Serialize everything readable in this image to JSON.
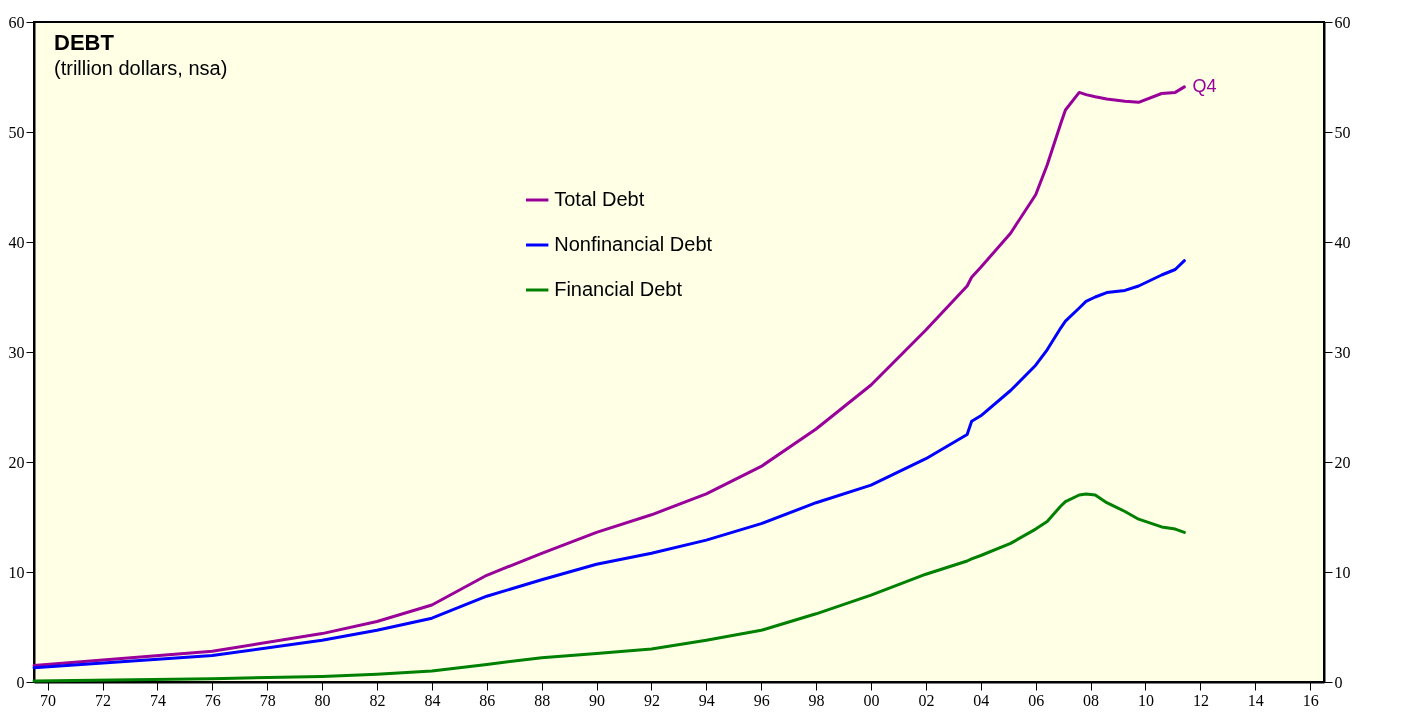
{
  "chart_data": {
    "type": "line",
    "title": "DEBT",
    "subtitle": "(trillion dollars, nsa)",
    "xlim": [
      "1970-01",
      "2017-01"
    ],
    "xticks": [
      {
        "value": "1970-07",
        "label": "70"
      },
      {
        "value": "1972-07",
        "label": "72"
      },
      {
        "value": "1974-07",
        "label": "74"
      },
      {
        "value": "1976-07",
        "label": "76"
      },
      {
        "value": "1978-07",
        "label": "78"
      },
      {
        "value": "1980-07",
        "label": "80"
      },
      {
        "value": "1982-07",
        "label": "82"
      },
      {
        "value": "1984-07",
        "label": "84"
      },
      {
        "value": "1986-07",
        "label": "86"
      },
      {
        "value": "1988-07",
        "label": "88"
      },
      {
        "value": "1990-07",
        "label": "90"
      },
      {
        "value": "1992-07",
        "label": "92"
      },
      {
        "value": "1994-07",
        "label": "94"
      },
      {
        "value": "1996-07",
        "label": "96"
      },
      {
        "value": "1998-07",
        "label": "98"
      },
      {
        "value": "2000-07",
        "label": "00"
      },
      {
        "value": "2002-07",
        "label": "02"
      },
      {
        "value": "2004-07",
        "label": "04"
      },
      {
        "value": "2006-07",
        "label": "06"
      },
      {
        "value": "2008-07",
        "label": "08"
      },
      {
        "value": "2010-07",
        "label": "10"
      },
      {
        "value": "2012-07",
        "label": "12"
      },
      {
        "value": "2014-07",
        "label": "14"
      },
      {
        "value": "2016-07",
        "label": "16"
      }
    ],
    "ylim": [
      0,
      60
    ],
    "yticks": [
      0,
      10,
      20,
      30,
      40,
      50,
      60
    ],
    "y2lim": [
      0,
      60
    ],
    "y2ticks": [
      0,
      10,
      20,
      30,
      40,
      50,
      60
    ],
    "grid": false,
    "legend": "top",
    "line_style": "solid",
    "marker": "none",
    "annotations": [
      {
        "text": "Q4",
        "x": "2011-12",
        "y": 54.1
      }
    ],
    "x": [
      "1970-01",
      "1976-07",
      "1980-07",
      "1982-07",
      "1984-07",
      "1986-07",
      "1988-07",
      "1990-07",
      "1992-07",
      "1994-07",
      "1996-07",
      "1998-07",
      "2000-07",
      "2002-07",
      "2004-01",
      "2004-03",
      "2004-07",
      "2005-08",
      "2006-07",
      "2006-12",
      "2007-06",
      "2007-08",
      "2008-02",
      "2008-05",
      "2008-09",
      "2009-02",
      "2009-10",
      "2010-04",
      "2011-02",
      "2011-08",
      "2011-12"
    ],
    "series": [
      {
        "name": "Total Debt",
        "color": "#990099",
        "values": [
          1.5,
          2.8,
          4.4,
          5.5,
          7.0,
          9.7,
          11.7,
          13.6,
          15.2,
          17.1,
          19.6,
          23.0,
          27.0,
          32.0,
          36.0,
          36.8,
          37.7,
          40.8,
          44.3,
          47.0,
          50.8,
          52.0,
          53.6,
          53.4,
          53.2,
          53.0,
          52.8,
          52.7,
          53.5,
          53.6,
          54.1
        ]
      },
      {
        "name": "Nonfinancial Debt",
        "color": "#0000ff",
        "values": [
          1.3,
          2.4,
          3.8,
          4.7,
          5.8,
          7.8,
          9.3,
          10.7,
          11.7,
          12.9,
          14.4,
          16.3,
          17.9,
          20.3,
          22.5,
          23.7,
          24.2,
          26.5,
          28.8,
          30.2,
          32.2,
          32.8,
          34.0,
          34.6,
          35.0,
          35.4,
          35.6,
          36.0,
          37.0,
          37.5,
          38.3
        ]
      },
      {
        "name": "Financial Debt",
        "color": "#008000",
        "values": [
          0.1,
          0.3,
          0.5,
          0.7,
          1.0,
          1.6,
          2.2,
          2.6,
          3.0,
          3.8,
          4.7,
          6.2,
          7.9,
          9.8,
          11.0,
          11.2,
          11.5,
          12.6,
          13.9,
          14.6,
          16.0,
          16.4,
          17.0,
          17.1,
          17.0,
          16.3,
          15.5,
          14.8,
          14.1,
          13.9,
          13.6
        ]
      }
    ]
  }
}
